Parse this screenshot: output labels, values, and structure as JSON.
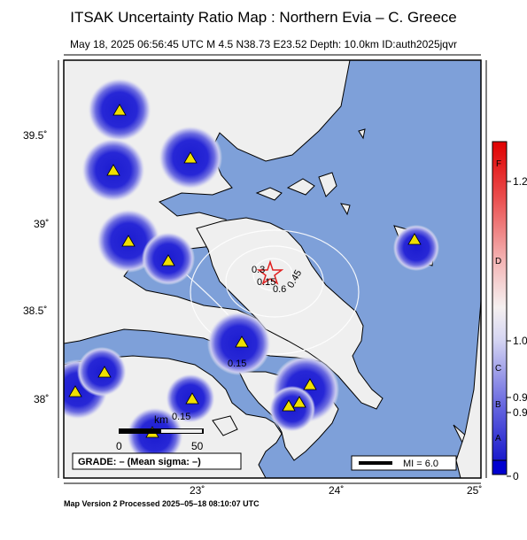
{
  "title": "ITSAK Uncertainty Ratio Map : Northern Evia – C. Greece",
  "subtitle": "May 18, 2025 06:56:45 UTC   M 4.5   N38.73 E23.52   Depth: 10.0km   ID:auth2025jqvr",
  "footer": "Map Version 2 Processed 2025–05–18 08:10:07 UTC",
  "lat_ticks": [
    "39.5˚",
    "39˚",
    "38.5˚",
    "38˚"
  ],
  "lon_ticks": [
    "23˚",
    "24˚",
    "25˚"
  ],
  "contour_labels": [
    "0.15",
    "0.6",
    "0.45",
    "0.15",
    "0.15"
  ],
  "contour_label_top": "0.3",
  "scale": {
    "unit": "km",
    "start": "0",
    "end": "50"
  },
  "grade_text": "GRADE: – (Mean sigma: –)",
  "mi_legend": "MI = 6.0",
  "colorbar": {
    "letters": [
      "F",
      "D",
      "C",
      "B",
      "A"
    ],
    "values": [
      "1.2",
      "1.0",
      "0.9",
      "0.9",
      "0"
    ]
  },
  "colors": {
    "sea": "#7ea0d9",
    "land": "#efefef",
    "station_halo": "#2b2bd6",
    "station": "#f0e000",
    "epicenter": "#e02020"
  },
  "icons": [
    "station-triangle-icon",
    "epicenter-star-icon"
  ]
}
